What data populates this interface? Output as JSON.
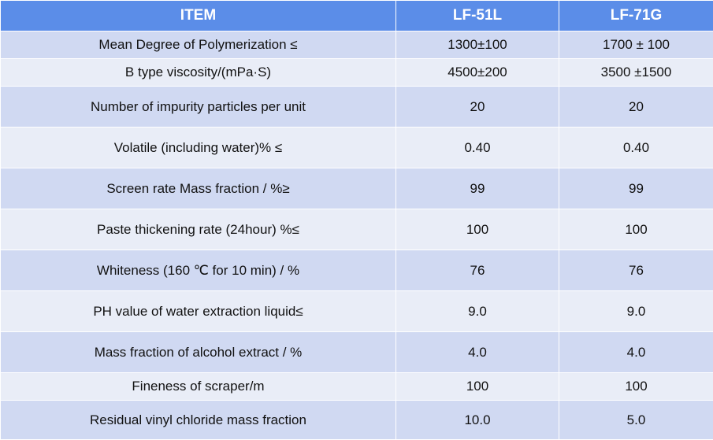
{
  "header": {
    "item": "ITEM",
    "col1": "LF-51L",
    "col2": "LF-71G"
  },
  "rows": [
    {
      "item": "Mean Degree of Polymerization ≤",
      "lf51l": "1300±100",
      "lf71g": "1700 ± 100"
    },
    {
      "item": "B type viscosity/(mPa·S)",
      "lf51l": "4500±200",
      "lf71g": "3500 ±1500"
    },
    {
      "item": "Number of impurity particles per unit",
      "lf51l": "20",
      "lf71g": "20"
    },
    {
      "item": "Volatile (including water)% ≤",
      "lf51l": "0.40",
      "lf71g": "0.40"
    },
    {
      "item": "Screen rate Mass fraction / %≥",
      "lf51l": "99",
      "lf71g": "99"
    },
    {
      "item": "Paste thickening rate (24hour)  %≤",
      "lf51l": "100",
      "lf71g": "100"
    },
    {
      "item": "Whiteness (160 ℃ for 10 min) / %",
      "lf51l": "76",
      "lf71g": "76"
    },
    {
      "item": "PH value of water extraction liquid≤",
      "lf51l": "9.0",
      "lf71g": "9.0"
    },
    {
      "item": "Mass fraction of alcohol extract / %",
      "lf51l": "4.0",
      "lf71g": "4.0"
    },
    {
      "item": "Fineness of scraper/m",
      "lf51l": "100",
      "lf71g": "100"
    },
    {
      "item": "Residual vinyl chloride mass fraction",
      "lf51l": "10.0",
      "lf71g": "5.0"
    }
  ],
  "colors": {
    "header_bg": "#5b8de8",
    "row_dark": "#d0d9f2",
    "row_light": "#e9edf7"
  }
}
